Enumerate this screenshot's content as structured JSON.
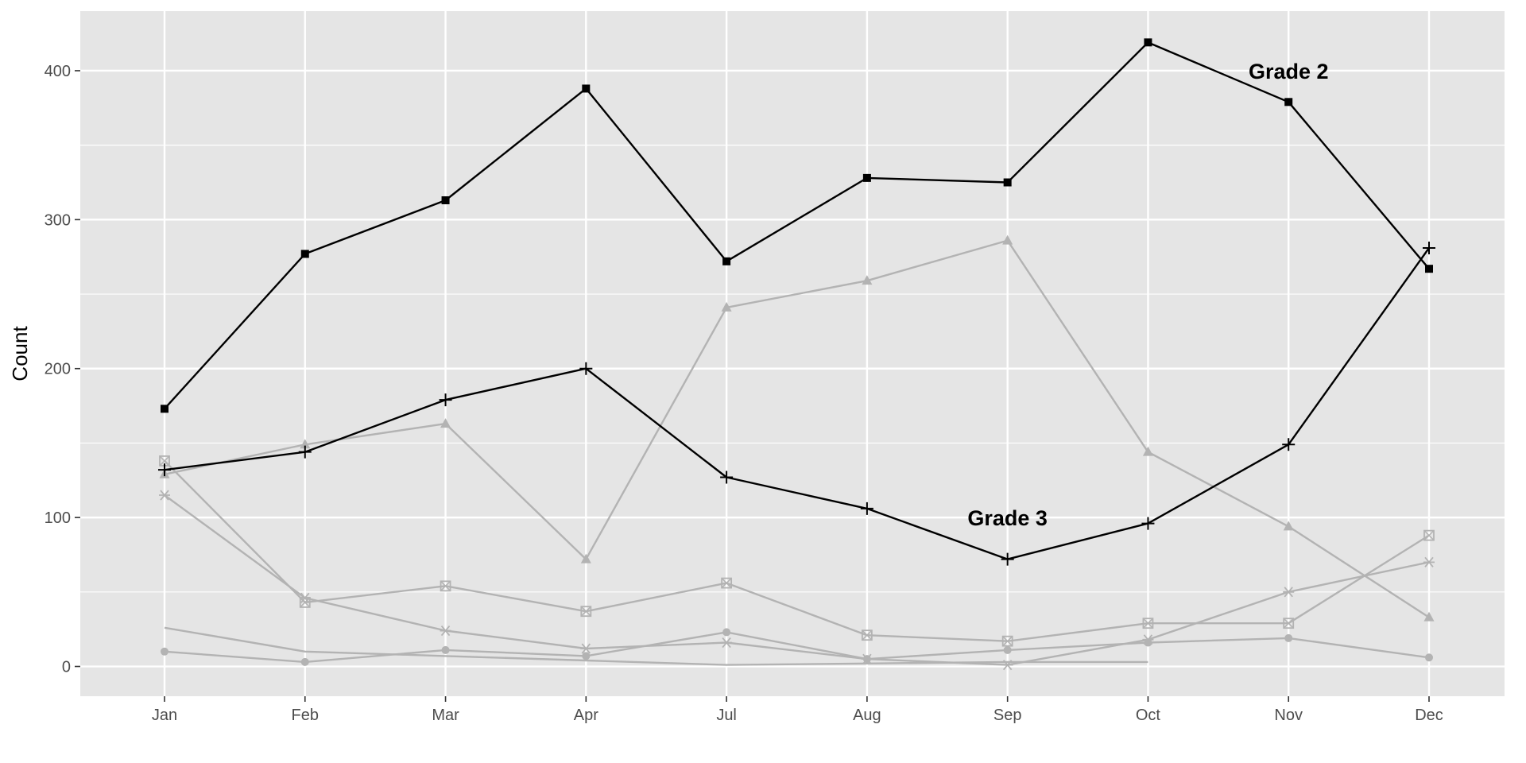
{
  "chart_data": {
    "type": "line",
    "title": "",
    "xlabel": "",
    "ylabel": "Count",
    "categories": [
      "Jan",
      "Feb",
      "Mar",
      "Apr",
      "Jul",
      "Aug",
      "Sep",
      "Oct",
      "Nov",
      "Dec"
    ],
    "ylim": [
      -20,
      440
    ],
    "yticks": [
      0,
      100,
      200,
      300,
      400
    ],
    "grid": true,
    "legend": "none",
    "colors": {
      "panel": "#e5e5e5",
      "grid": "#ffffff",
      "highlight": "#000000",
      "muted": "#b3b3b3"
    },
    "series": [
      {
        "key": "g2",
        "style": "highlight",
        "marker": "square",
        "values": [
          173,
          277,
          313,
          388,
          272,
          328,
          325,
          419,
          379,
          267
        ]
      },
      {
        "key": "g3",
        "style": "highlight",
        "marker": "plus",
        "values": [
          132,
          144,
          179,
          200,
          127,
          106,
          72,
          96,
          149,
          281
        ]
      },
      {
        "key": "s_triangle",
        "style": "muted",
        "marker": "triangle",
        "values": [
          129,
          149,
          163,
          72,
          241,
          259,
          286,
          144,
          94,
          33
        ]
      },
      {
        "key": "s_boxx",
        "style": "muted",
        "marker": "boxx",
        "values": [
          138,
          43,
          54,
          37,
          56,
          21,
          17,
          29,
          29,
          88
        ]
      },
      {
        "key": "s_asterisk",
        "style": "muted",
        "marker": "asterisk",
        "values": [
          115,
          46,
          24,
          12,
          16,
          5,
          1,
          18,
          50,
          70
        ]
      },
      {
        "key": "s_circle",
        "style": "muted",
        "marker": "circle",
        "values": [
          10,
          3,
          11,
          7,
          23,
          5,
          11,
          16,
          19,
          6
        ]
      },
      {
        "key": "s_plain",
        "style": "muted",
        "marker": "none",
        "values": [
          26,
          10,
          7,
          4,
          1,
          2,
          3,
          3,
          null,
          null
        ]
      }
    ],
    "annotations": [
      {
        "text": "Grade 2",
        "x": "Nov",
        "y": 400
      },
      {
        "text": "Grade 3",
        "x": "Sep",
        "y": 100
      }
    ]
  }
}
